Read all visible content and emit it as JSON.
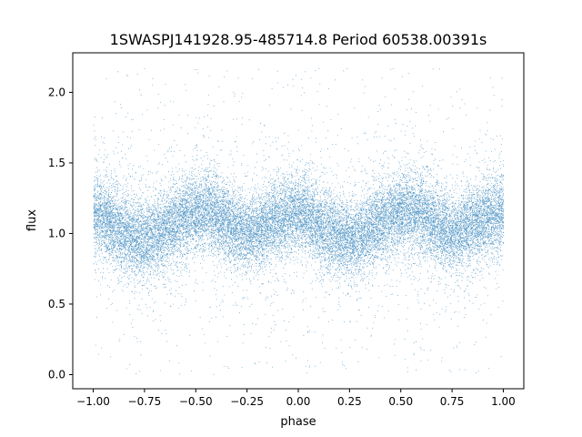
{
  "chart_data": {
    "type": "scatter",
    "title": "1SWASPJ141928.95-485714.8 Period 60538.00391s",
    "xlabel": "phase",
    "ylabel": "flux",
    "xlim": [
      -1.1,
      1.1
    ],
    "ylim": [
      -0.1,
      2.28
    ],
    "xticks": [
      -1.0,
      -0.75,
      -0.5,
      -0.25,
      0.0,
      0.25,
      0.5,
      0.75,
      1.0
    ],
    "xtick_labels": [
      "−1.00",
      "−0.75",
      "−0.50",
      "−0.25",
      "0.00",
      "0.25",
      "0.50",
      "0.75",
      "1.00"
    ],
    "yticks": [
      0.0,
      0.5,
      1.0,
      1.5,
      2.0
    ],
    "ytick_labels": [
      "0.0",
      "0.5",
      "1.0",
      "1.5",
      "2.0"
    ],
    "grid": false,
    "series": [
      {
        "color": "#1f77b4",
        "approx_point_count": 24000,
        "x_range": [
          -1.0,
          1.0
        ],
        "y_range": [
          0.0,
          2.17
        ],
        "phase_folded": true,
        "trend": {
          "x": [
            -1.0,
            -0.9,
            -0.8,
            -0.75,
            -0.7,
            -0.6,
            -0.5,
            -0.45,
            -0.4,
            -0.3,
            -0.25,
            -0.2,
            -0.1,
            0.0,
            0.05,
            0.1,
            0.2,
            0.25,
            0.3,
            0.4,
            0.5,
            0.55,
            0.6,
            0.7,
            0.75,
            0.8,
            0.9,
            1.0
          ],
          "y": [
            1.15,
            1.05,
            0.97,
            0.95,
            0.98,
            1.08,
            1.15,
            1.16,
            1.12,
            1.03,
            1.0,
            1.02,
            1.1,
            1.15,
            1.12,
            1.05,
            0.97,
            0.95,
            0.98,
            1.08,
            1.15,
            1.16,
            1.12,
            1.03,
            1.0,
            1.02,
            1.1,
            1.15
          ]
        },
        "core_spread": 0.13
      }
    ]
  }
}
